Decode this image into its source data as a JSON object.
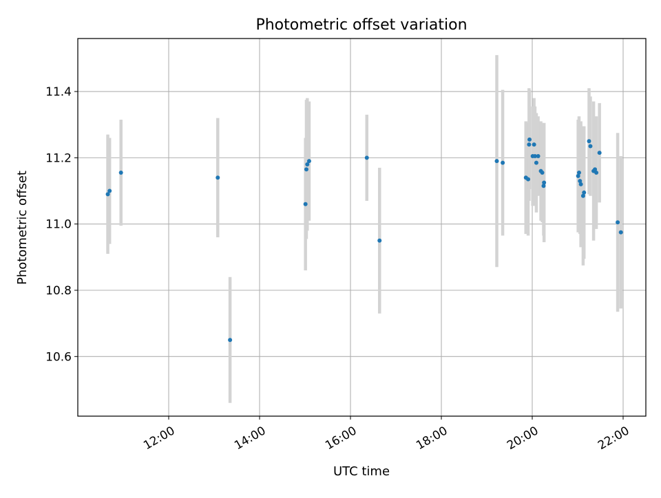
{
  "chart_data": {
    "type": "scatter",
    "title": "Photometric offset variation",
    "xlabel": "UTC time",
    "ylabel": "Photometric offset",
    "x_unit": "hours UTC",
    "xlim": [
      10.0,
      22.5
    ],
    "ylim": [
      10.42,
      11.56
    ],
    "x_ticks": [
      {
        "value": 12,
        "label": "12:00"
      },
      {
        "value": 14,
        "label": "14:00"
      },
      {
        "value": 16,
        "label": "16:00"
      },
      {
        "value": 18,
        "label": "18:00"
      },
      {
        "value": 20,
        "label": "20:00"
      },
      {
        "value": 22,
        "label": "22:00"
      }
    ],
    "y_ticks": [
      {
        "value": 10.6,
        "label": "10.6"
      },
      {
        "value": 10.8,
        "label": "10.8"
      },
      {
        "value": 11.0,
        "label": "11.0"
      },
      {
        "value": 11.2,
        "label": "11.2"
      },
      {
        "value": 11.4,
        "label": "11.4"
      }
    ],
    "grid": true,
    "marker_color": "#1f77b4",
    "errorbar_color": "#d3d3d3",
    "points": [
      {
        "x": 10.66,
        "y": 11.09,
        "err": 0.18
      },
      {
        "x": 10.7,
        "y": 11.1,
        "err": 0.16
      },
      {
        "x": 10.95,
        "y": 11.155,
        "err": 0.16
      },
      {
        "x": 13.08,
        "y": 11.14,
        "err": 0.18
      },
      {
        "x": 13.35,
        "y": 10.65,
        "err": 0.19
      },
      {
        "x": 15.01,
        "y": 11.06,
        "err": 0.2
      },
      {
        "x": 15.03,
        "y": 11.165,
        "err": 0.21
      },
      {
        "x": 15.05,
        "y": 11.18,
        "err": 0.2
      },
      {
        "x": 15.09,
        "y": 11.19,
        "err": 0.18
      },
      {
        "x": 16.36,
        "y": 11.2,
        "err": 0.13
      },
      {
        "x": 16.64,
        "y": 10.95,
        "err": 0.22
      },
      {
        "x": 19.22,
        "y": 11.19,
        "err": 0.32
      },
      {
        "x": 19.35,
        "y": 11.185,
        "err": 0.22
      },
      {
        "x": 19.86,
        "y": 11.14,
        "err": 0.17
      },
      {
        "x": 19.91,
        "y": 11.135,
        "err": 0.17
      },
      {
        "x": 19.93,
        "y": 11.24,
        "err": 0.17
      },
      {
        "x": 19.94,
        "y": 11.255,
        "err": 0.15
      },
      {
        "x": 20.01,
        "y": 11.205,
        "err": 0.15
      },
      {
        "x": 20.04,
        "y": 11.24,
        "err": 0.14
      },
      {
        "x": 20.06,
        "y": 11.205,
        "err": 0.15
      },
      {
        "x": 20.09,
        "y": 11.185,
        "err": 0.15
      },
      {
        "x": 20.13,
        "y": 11.205,
        "err": 0.12
      },
      {
        "x": 20.19,
        "y": 11.16,
        "err": 0.15
      },
      {
        "x": 20.22,
        "y": 11.155,
        "err": 0.15
      },
      {
        "x": 20.26,
        "y": 11.125,
        "err": 0.18
      },
      {
        "x": 20.25,
        "y": 11.115,
        "err": 0.15
      },
      {
        "x": 21.01,
        "y": 11.145,
        "err": 0.17
      },
      {
        "x": 21.03,
        "y": 11.155,
        "err": 0.17
      },
      {
        "x": 21.05,
        "y": 11.13,
        "err": 0.16
      },
      {
        "x": 21.07,
        "y": 11.12,
        "err": 0.19
      },
      {
        "x": 21.12,
        "y": 11.085,
        "err": 0.21
      },
      {
        "x": 21.14,
        "y": 11.095,
        "err": 0.2
      },
      {
        "x": 21.25,
        "y": 11.25,
        "err": 0.16
      },
      {
        "x": 21.28,
        "y": 11.235,
        "err": 0.15
      },
      {
        "x": 21.35,
        "y": 11.16,
        "err": 0.21
      },
      {
        "x": 21.38,
        "y": 11.165,
        "err": 0.15
      },
      {
        "x": 21.41,
        "y": 11.155,
        "err": 0.17
      },
      {
        "x": 21.48,
        "y": 11.215,
        "err": 0.15
      },
      {
        "x": 21.88,
        "y": 11.005,
        "err": 0.27
      },
      {
        "x": 21.95,
        "y": 10.975,
        "err": 0.23
      }
    ]
  }
}
